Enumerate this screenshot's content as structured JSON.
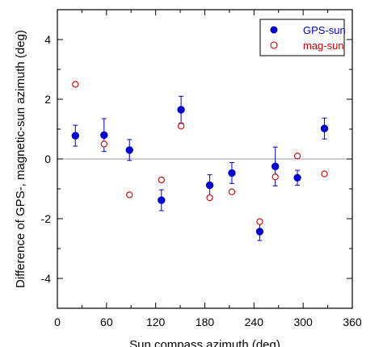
{
  "chart_data": {
    "type": "scatter",
    "title": "",
    "xlabel": "Sun compass azimuth (deg)",
    "ylabel": "Difference of GPS-, magnetic-sun azimuth (deg)",
    "xlim": [
      0,
      360
    ],
    "ylim": [
      -5,
      5
    ],
    "xticks": [
      0,
      60,
      120,
      180,
      240,
      300,
      360
    ],
    "yticks": [
      -4,
      -2,
      0,
      2,
      4
    ],
    "reference_line_y": 0,
    "legend_position": "top-right",
    "series": [
      {
        "name": "GPS-sun",
        "color": "#0000cc",
        "marker": "filled-circle",
        "x": [
          22,
          57,
          88,
          127,
          151,
          186,
          213,
          247,
          266,
          293,
          326
        ],
        "y": [
          0.78,
          0.8,
          0.3,
          -1.38,
          1.65,
          -0.88,
          -0.47,
          -2.43,
          -0.25,
          -0.63,
          1.02
        ],
        "err": [
          0.35,
          0.55,
          0.35,
          0.35,
          0.45,
          0.35,
          0.35,
          0.3,
          0.65,
          0.25,
          0.35
        ]
      },
      {
        "name": "mag-sun",
        "color": "#cc0000",
        "marker": "open-circle",
        "x": [
          22,
          57,
          88,
          127,
          151,
          186,
          213,
          247,
          266,
          293,
          326
        ],
        "y": [
          2.5,
          0.5,
          -1.2,
          -0.7,
          1.1,
          -1.3,
          -1.1,
          -2.1,
          -0.6,
          0.1,
          -0.5
        ]
      }
    ]
  }
}
